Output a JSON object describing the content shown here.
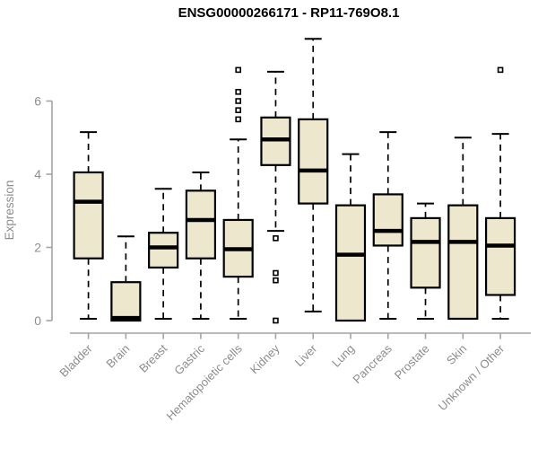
{
  "title": "ENSG00000266171 - RP11-769O8.1",
  "chart_data": {
    "type": "boxplot",
    "title": "ENSG00000266171 - RP11-769O8.1",
    "xlabel": "",
    "ylabel": "Expression",
    "yticks": [
      0,
      2,
      4,
      6
    ],
    "ylim": [
      0,
      7.8
    ],
    "grid": false,
    "legend": "none",
    "colors": {
      "box_fill": "#EDE8CD",
      "box_stroke": "#000000",
      "median": "#000000",
      "whisker": "#000000",
      "axis": "#A3A3A3",
      "axis_text": "#8E8E8E",
      "title": "#000000",
      "background": "#FFFFFF"
    },
    "categories": [
      "Bladder",
      "Brain",
      "Breast",
      "Gastric",
      "Hematopoietic cells",
      "Kidney",
      "Liver",
      "Lung",
      "Pancreas",
      "Prostate",
      "Skin",
      "Unknown / Other"
    ],
    "series": [
      {
        "category": "Bladder",
        "whisker_low": 0.05,
        "q1": 1.7,
        "median": 3.25,
        "q3": 4.05,
        "whisker_high": 5.15,
        "outliers": []
      },
      {
        "category": "Brain",
        "whisker_low": 0.0,
        "q1": 0.0,
        "median": 0.07,
        "q3": 1.05,
        "whisker_high": 2.3,
        "outliers": []
      },
      {
        "category": "Breast",
        "whisker_low": 0.05,
        "q1": 1.45,
        "median": 2.0,
        "q3": 2.4,
        "whisker_high": 3.6,
        "outliers": []
      },
      {
        "category": "Gastric",
        "whisker_low": 0.05,
        "q1": 1.7,
        "median": 2.75,
        "q3": 3.55,
        "whisker_high": 4.05,
        "outliers": []
      },
      {
        "category": "Hematopoietic cells",
        "whisker_low": 0.05,
        "q1": 1.2,
        "median": 1.95,
        "q3": 2.75,
        "whisker_high": 4.95,
        "outliers": [
          5.5,
          5.75,
          6.0,
          6.25,
          6.85
        ]
      },
      {
        "category": "Kidney",
        "whisker_low": 2.45,
        "q1": 4.25,
        "median": 4.95,
        "q3": 5.55,
        "whisker_high": 6.8,
        "outliers": [
          2.25,
          1.3,
          1.1,
          0.0
        ]
      },
      {
        "category": "Liver",
        "whisker_low": 0.25,
        "q1": 3.2,
        "median": 4.1,
        "q3": 5.5,
        "whisker_high": 7.7,
        "outliers": []
      },
      {
        "category": "Lung",
        "whisker_low": 0.0,
        "q1": 0.0,
        "median": 1.8,
        "q3": 3.15,
        "whisker_high": 4.55,
        "outliers": []
      },
      {
        "category": "Pancreas",
        "whisker_low": 0.05,
        "q1": 2.05,
        "median": 2.45,
        "q3": 3.45,
        "whisker_high": 5.15,
        "outliers": []
      },
      {
        "category": "Prostate",
        "whisker_low": 0.05,
        "q1": 0.9,
        "median": 2.15,
        "q3": 2.8,
        "whisker_high": 3.2,
        "outliers": []
      },
      {
        "category": "Skin",
        "whisker_low": 0.05,
        "q1": 0.05,
        "median": 2.15,
        "q3": 3.15,
        "whisker_high": 5.0,
        "outliers": []
      },
      {
        "category": "Unknown / Other",
        "whisker_low": 0.05,
        "q1": 0.7,
        "median": 2.05,
        "q3": 2.8,
        "whisker_high": 5.1,
        "outliers": [
          6.85
        ]
      }
    ]
  }
}
